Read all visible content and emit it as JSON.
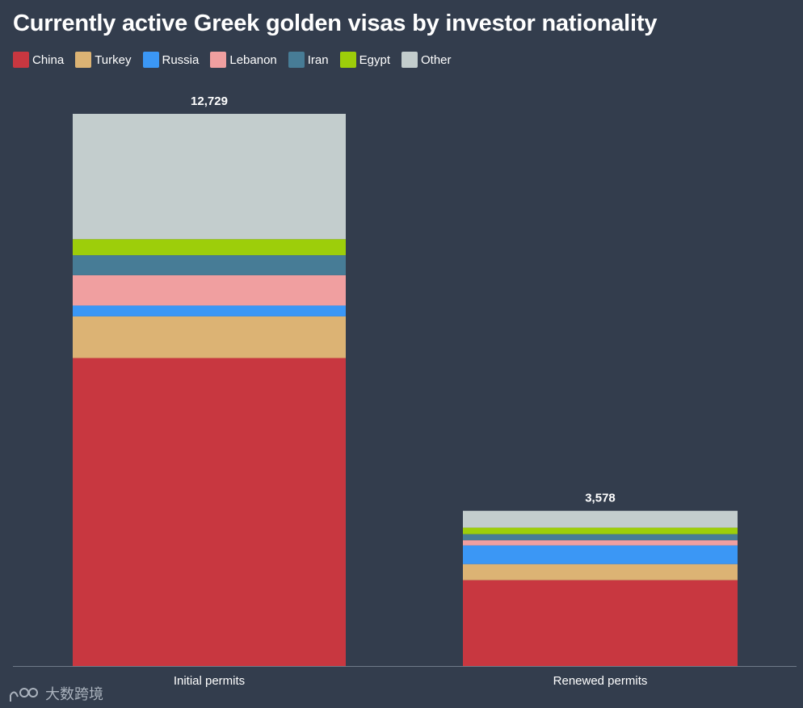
{
  "chart_data": {
    "type": "bar",
    "stacked": true,
    "title": "Currently active Greek golden visas by investor nationality",
    "categories": [
      "Initial permits",
      "Renewed permits"
    ],
    "totals_labels": [
      "12,729",
      "3,578"
    ],
    "totals": [
      12729,
      3578
    ],
    "series": [
      {
        "name": "China",
        "color": "#c83740",
        "values": [
          7100,
          1980
        ]
      },
      {
        "name": "Turkey",
        "color": "#dcb374",
        "values": [
          960,
          370
        ]
      },
      {
        "name": "Russia",
        "color": "#3b97f5",
        "values": [
          250,
          430
        ]
      },
      {
        "name": "Lebanon",
        "color": "#f09fa0",
        "values": [
          700,
          120
        ]
      },
      {
        "name": "Iran",
        "color": "#477c96",
        "values": [
          460,
          140
        ]
      },
      {
        "name": "Egypt",
        "color": "#9dce0a",
        "values": [
          370,
          150
        ]
      },
      {
        "name": "Other",
        "color": "#c3cdcd",
        "values": [
          2889,
          388
        ]
      }
    ],
    "ylim": [
      0,
      12729
    ],
    "grid": false,
    "legend": "top-left"
  },
  "watermark": {
    "text": "大数跨境"
  }
}
